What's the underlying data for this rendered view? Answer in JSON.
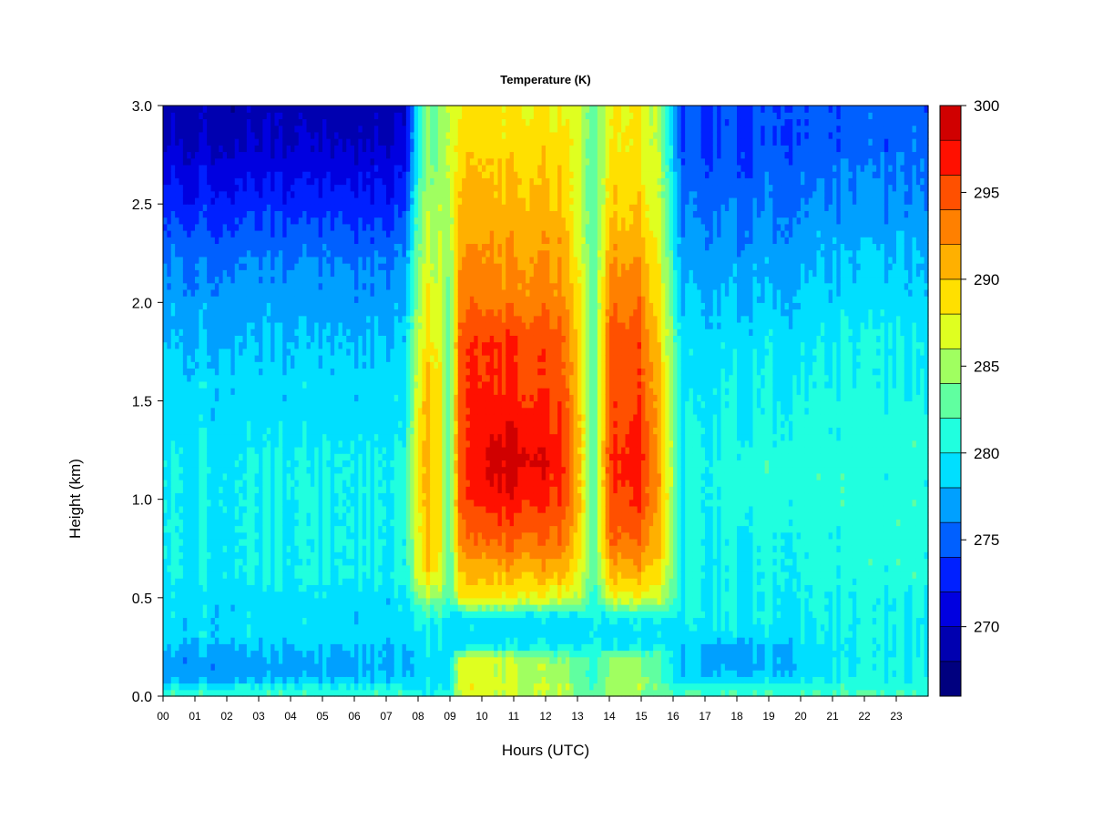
{
  "chart_data": {
    "type": "heatmap",
    "title": "Temperature (K)",
    "xlabel": "Hours (UTC)",
    "ylabel": "Height (km)",
    "x_ticks": [
      "00",
      "01",
      "02",
      "03",
      "04",
      "05",
      "06",
      "07",
      "08",
      "09",
      "10",
      "11",
      "12",
      "13",
      "14",
      "15",
      "16",
      "17",
      "18",
      "19",
      "20",
      "21",
      "22",
      "23"
    ],
    "x_range": [
      0,
      24
    ],
    "y_ticks": [
      "0.0",
      "0.5",
      "1.0",
      "1.5",
      "2.0",
      "2.5",
      "3.0"
    ],
    "y_range": [
      0,
      3
    ],
    "colorbar": {
      "ticks": [
        "270",
        "275",
        "280",
        "285",
        "290",
        "295",
        "300"
      ],
      "range": [
        266,
        300
      ],
      "levels": [
        266,
        268,
        270,
        272,
        274,
        276,
        278,
        280,
        282,
        284,
        286,
        288,
        290,
        292,
        294,
        296,
        298,
        300
      ],
      "colors": [
        "#00007F",
        "#0000B0",
        "#0000E0",
        "#0020FF",
        "#0060FF",
        "#00A0FF",
        "#00DFFF",
        "#20FFDF",
        "#60FFA0",
        "#A0FF60",
        "#DFFF20",
        "#FFE000",
        "#FFB000",
        "#FF8000",
        "#FF5000",
        "#FF1000",
        "#D00000",
        "#800000"
      ]
    },
    "field_samples": {
      "heights_km": [
        0.0,
        0.05,
        0.1,
        0.15,
        0.2,
        0.25,
        0.3,
        0.4,
        0.5,
        0.6,
        0.7,
        0.8,
        1.0,
        1.2,
        1.4,
        1.6,
        1.8,
        2.0,
        2.2,
        2.4,
        2.6,
        2.8,
        3.0
      ],
      "profiles": [
        {
          "hour": 0.0,
          "temps_k": [
            282,
            280,
            277,
            277,
            277,
            278,
            279,
            279,
            279,
            280,
            280,
            280,
            280,
            280,
            279,
            279,
            278,
            277,
            276,
            274,
            272,
            270,
            269
          ]
        },
        {
          "hour": 4.0,
          "temps_k": [
            282,
            280,
            277,
            277,
            277,
            278,
            279,
            279,
            279,
            280,
            280,
            280,
            280,
            280,
            279,
            279,
            278,
            277,
            276,
            274,
            272,
            270,
            269
          ]
        },
        {
          "hour": 7.5,
          "temps_k": [
            282,
            280,
            278,
            278,
            278,
            278,
            279,
            279,
            279,
            280,
            280,
            280,
            280,
            280,
            279,
            279,
            278,
            277,
            276,
            274,
            272,
            270,
            269
          ]
        },
        {
          "hour": 8.2,
          "temps_k": [
            281,
            280,
            279,
            279,
            279,
            280,
            280,
            281,
            285,
            289,
            290,
            290,
            291,
            291,
            291,
            290,
            289,
            288,
            287,
            286,
            285,
            284,
            284
          ]
        },
        {
          "hour": 8.6,
          "temps_k": [
            281,
            280,
            279,
            279,
            279,
            280,
            280,
            281,
            285,
            288,
            289,
            289,
            290,
            290,
            290,
            289,
            288,
            287,
            286,
            285,
            285,
            284,
            284
          ]
        },
        {
          "hour": 9.0,
          "temps_k": [
            281,
            280,
            279,
            279,
            279,
            279,
            279,
            279,
            281,
            282,
            282,
            282,
            282,
            282,
            282,
            282,
            282,
            283,
            284,
            285,
            286,
            286,
            286
          ]
        },
        {
          "hour": 9.3,
          "temps_k": [
            286,
            287,
            287,
            287,
            286,
            280,
            279,
            279,
            288,
            290,
            291,
            293,
            295,
            295,
            295,
            295,
            295,
            293,
            292,
            291,
            290,
            289,
            288
          ]
        },
        {
          "hour": 10.5,
          "temps_k": [
            286,
            287,
            286,
            286,
            286,
            280,
            279,
            279,
            288,
            290,
            292,
            294,
            297,
            299,
            297,
            296,
            296,
            293,
            292,
            291,
            290,
            289,
            288
          ]
        },
        {
          "hour": 11.0,
          "temps_k": [
            286,
            286,
            286,
            286,
            285,
            280,
            279,
            279,
            288,
            290,
            292,
            294,
            297,
            299,
            297,
            296,
            296,
            293,
            292,
            291,
            290,
            289,
            288
          ]
        },
        {
          "hour": 12.5,
          "temps_k": [
            285,
            286,
            285,
            285,
            284,
            280,
            279,
            279,
            287,
            290,
            292,
            294,
            296,
            297,
            296,
            295,
            295,
            293,
            292,
            291,
            290,
            289,
            288
          ]
        },
        {
          "hour": 13.0,
          "temps_k": [
            283,
            284,
            283,
            283,
            283,
            280,
            279,
            279,
            286,
            288,
            289,
            290,
            291,
            291,
            291,
            290,
            290,
            289,
            288,
            287,
            287,
            287,
            287
          ]
        },
        {
          "hour": 13.5,
          "temps_k": [
            282,
            281,
            280,
            280,
            280,
            280,
            279,
            279,
            280,
            281,
            281,
            281,
            281,
            281,
            281,
            281,
            281,
            281,
            281,
            281,
            281,
            281,
            281
          ]
        },
        {
          "hour": 14.0,
          "temps_k": [
            284,
            285,
            285,
            285,
            285,
            280,
            279,
            280,
            287,
            290,
            292,
            294,
            295,
            296,
            295,
            295,
            295,
            293,
            292,
            290,
            289,
            288,
            288
          ]
        },
        {
          "hour": 15.0,
          "temps_k": [
            284,
            285,
            285,
            285,
            284,
            280,
            279,
            280,
            287,
            290,
            292,
            294,
            296,
            297,
            296,
            295,
            295,
            293,
            292,
            290,
            289,
            288,
            288
          ]
        },
        {
          "hour": 15.6,
          "temps_k": [
            283,
            283,
            282,
            282,
            282,
            280,
            279,
            280,
            286,
            288,
            289,
            290,
            291,
            291,
            290,
            290,
            289,
            288,
            287,
            286,
            285,
            285,
            284
          ]
        },
        {
          "hour": 16.3,
          "temps_k": [
            282,
            281,
            278,
            278,
            278,
            278,
            279,
            280,
            280,
            280,
            280,
            280,
            280,
            280,
            280,
            279,
            279,
            278,
            277,
            276,
            275,
            274,
            274
          ]
        },
        {
          "hour": 18.0,
          "temps_k": [
            282,
            281,
            278,
            277,
            277,
            277,
            279,
            280,
            280,
            280,
            280,
            280,
            281,
            281,
            280,
            280,
            279,
            278,
            277,
            276,
            275,
            274,
            274
          ]
        },
        {
          "hour": 22.0,
          "temps_k": [
            282,
            281,
            280,
            280,
            280,
            280,
            280,
            280,
            280,
            281,
            281,
            281,
            281,
            281,
            281,
            280,
            280,
            279,
            278,
            277,
            276,
            275,
            275
          ]
        },
        {
          "hour": 24.0,
          "temps_k": [
            282,
            281,
            280,
            280,
            280,
            280,
            280,
            280,
            280,
            281,
            281,
            281,
            281,
            281,
            281,
            280,
            280,
            279,
            278,
            277,
            276,
            275,
            275
          ]
        }
      ]
    }
  }
}
